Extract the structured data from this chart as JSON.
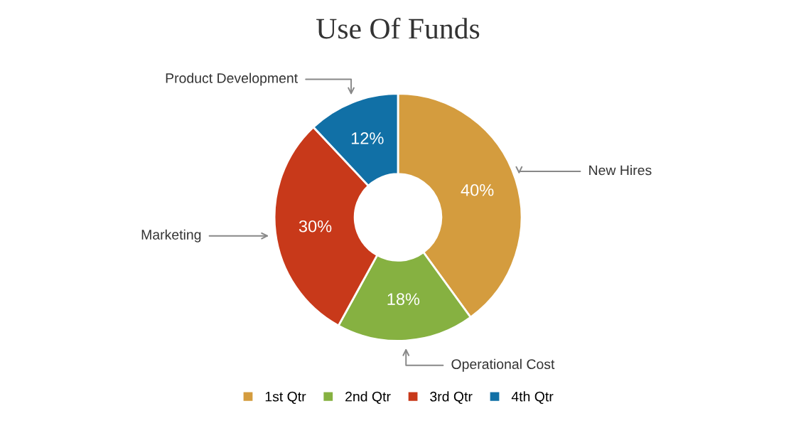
{
  "chart_data": {
    "type": "donut",
    "title": "Use Of Funds",
    "categories": [
      "1st Qtr",
      "2nd Qtr",
      "3rd Qtr",
      "4th Qtr"
    ],
    "values": [
      40,
      18,
      30,
      12
    ],
    "colors": [
      "#d49c3e",
      "#86b141",
      "#c8391a",
      "#1170a6"
    ],
    "value_labels": [
      "40%",
      "18%",
      "30%",
      "12%"
    ],
    "annotations": [
      "New Hires",
      "Operational Cost",
      "Marketing",
      "Product Development"
    ],
    "legend": "bottom"
  }
}
